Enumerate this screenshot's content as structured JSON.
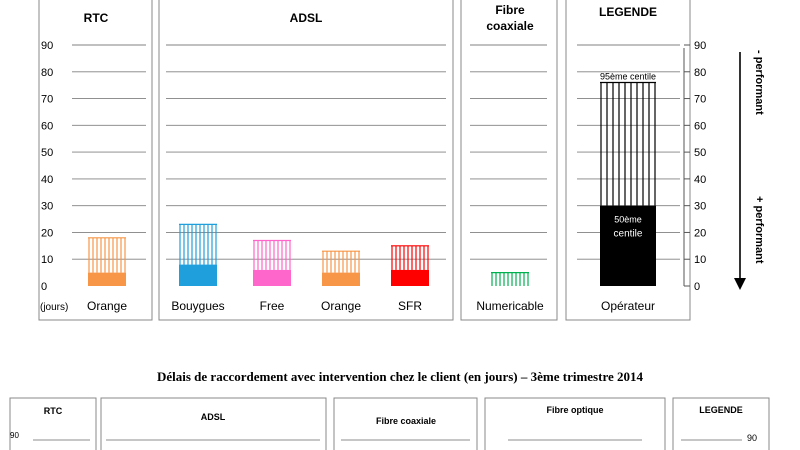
{
  "chart_data": [
    {
      "type": "bar",
      "title": "",
      "ylabel": "(jours)",
      "ylim": [
        0,
        90
      ],
      "yticks": [
        0,
        10,
        20,
        30,
        40,
        50,
        60,
        70,
        80,
        90
      ],
      "grid": true,
      "panels": [
        {
          "name": "RTC",
          "categories": [
            "Orange"
          ],
          "p50": [
            5
          ],
          "p95": [
            18
          ],
          "colors": [
            "#f79646"
          ]
        },
        {
          "name": "ADSL",
          "categories": [
            "Bouygues",
            "Free",
            "Orange",
            "SFR"
          ],
          "p50": [
            8,
            6,
            5,
            6
          ],
          "p95": [
            23,
            17,
            13,
            15
          ],
          "colors": [
            "#1f9fdc",
            "#ff66cc",
            "#f79646",
            "#ff0000"
          ]
        },
        {
          "name": "Fibre coaxiale",
          "categories": [
            "Numericable"
          ],
          "p50": [
            0
          ],
          "p95": [
            5
          ],
          "colors": [
            "#00b050"
          ]
        }
      ],
      "legend": {
        "name": "LEGENDE",
        "category": "Opérateur",
        "p50": 30,
        "p95": 76,
        "p50_label_line1": "50ème",
        "p50_label_line2": "centile",
        "p95_label": "95ème centile",
        "color": "#000000"
      },
      "side_annotations": {
        "top": "- performant",
        "bottom": "+ performant"
      }
    },
    {
      "type": "bar",
      "title": "Délais de raccordement avec intervention chez le client (en jours) – 3ème trimestre 2014",
      "ylim": [
        0,
        90
      ],
      "yticks": [
        90
      ],
      "panels": [
        {
          "name": "RTC"
        },
        {
          "name": "ADSL"
        },
        {
          "name": "Fibre coaxiale"
        },
        {
          "name": "Fibre optique"
        },
        {
          "name": "LEGENDE"
        }
      ]
    }
  ]
}
